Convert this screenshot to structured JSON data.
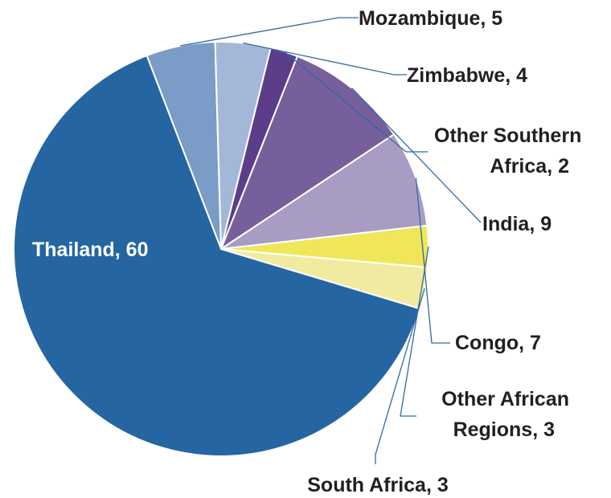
{
  "chart_data": {
    "type": "pie",
    "title": "",
    "slices": [
      {
        "label": "Mozambique",
        "value": 5,
        "color": "#7a9cc6"
      },
      {
        "label": "Zimbabwe",
        "value": 4,
        "color": "#a3b8d8"
      },
      {
        "label": "Other Southern Africa",
        "value": 2,
        "color": "#5b3d8a"
      },
      {
        "label": "India",
        "value": 9,
        "color": "#765f9b"
      },
      {
        "label": "Congo",
        "value": 7,
        "color": "#a99cc2"
      },
      {
        "label": "Other African Regions",
        "value": 3,
        "color": "#f0e65a"
      },
      {
        "label": "South Africa",
        "value": 3,
        "color": "#f1eba0"
      },
      {
        "label": "Thailand",
        "value": 60,
        "color": "#2566a2"
      }
    ],
    "data_labels": [
      {
        "lines": [
          "Mozambique, 5"
        ]
      },
      {
        "lines": [
          "Zimbabwe, 4"
        ]
      },
      {
        "lines": [
          "Other Southern",
          "Africa, 2"
        ]
      },
      {
        "lines": [
          "India, 9"
        ]
      },
      {
        "lines": [
          "Congo, 7"
        ]
      },
      {
        "lines": [
          "Other African",
          "Regions, 3"
        ]
      },
      {
        "lines": [
          "South Africa, 3"
        ]
      },
      {
        "lines": [
          "Thailand, 60"
        ]
      }
    ],
    "leader_color": "#2f6aa3",
    "slice_edge_color": "#ffffff",
    "legend": "none"
  }
}
